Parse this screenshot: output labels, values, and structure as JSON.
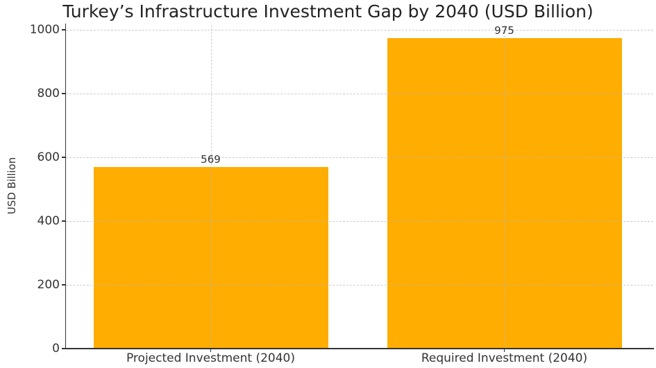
{
  "chart_data": {
    "type": "bar",
    "title": "Turkey’s Infrastructure Investment Gap by 2040 (USD Billion)",
    "categories": [
      "Projected Investment (2040)",
      "Required Investment (2040)"
    ],
    "values": [
      569,
      975
    ],
    "value_labels": [
      "569",
      "975"
    ],
    "xlabel": "",
    "ylabel": "USD Billion",
    "ylim": [
      0,
      1000
    ],
    "yticks": [
      0,
      200,
      400,
      600,
      800,
      1000
    ],
    "bar_color": "#FFAD00",
    "grid": true,
    "grid_style": "dashed",
    "legend": "none",
    "text_color": "#333333",
    "spine_color": "#333333"
  }
}
